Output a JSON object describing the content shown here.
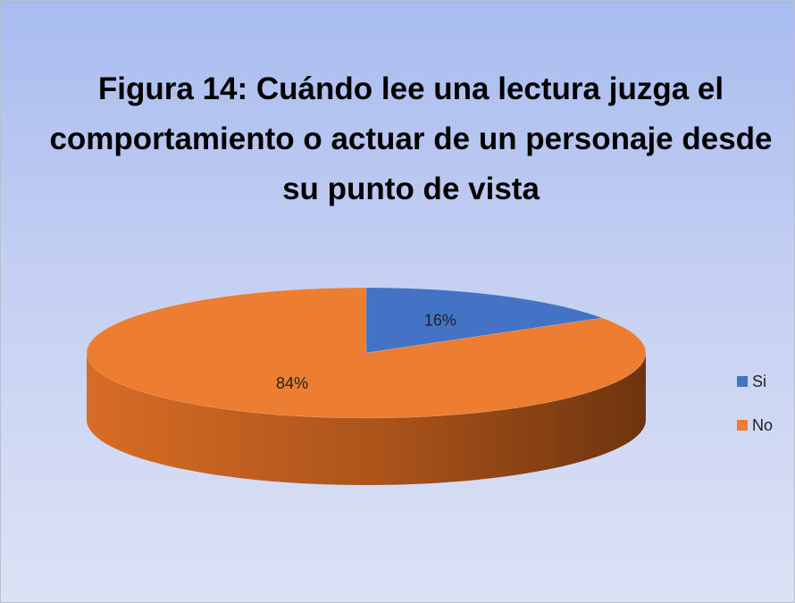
{
  "chart_data": {
    "type": "pie",
    "title": "Figura 14: Cuándo lee una lectura juzga el comportamiento o actuar de un personaje desde su punto de vista",
    "categories": [
      "Si",
      "No"
    ],
    "values": [
      16,
      84
    ],
    "value_labels": [
      "16%",
      "84%"
    ],
    "colors": [
      "#4472c4",
      "#ed7d31"
    ],
    "legend": "right"
  }
}
